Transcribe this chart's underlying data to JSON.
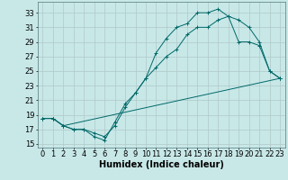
{
  "title": "",
  "xlabel": "Humidex (Indice chaleur)",
  "ylabel": "",
  "background_color": "#c8e8e8",
  "grid_color": "#b0c8c8",
  "line_color": "#006868",
  "xlim": [
    -0.5,
    23.5
  ],
  "ylim": [
    14.5,
    34.5
  ],
  "xticks": [
    0,
    1,
    2,
    3,
    4,
    5,
    6,
    7,
    8,
    9,
    10,
    11,
    12,
    13,
    14,
    15,
    16,
    17,
    18,
    19,
    20,
    21,
    22,
    23
  ],
  "yticks": [
    15,
    17,
    19,
    21,
    23,
    25,
    27,
    29,
    31,
    33
  ],
  "line1_x": [
    0,
    1,
    2,
    3,
    4,
    5,
    6,
    7,
    8,
    9,
    10,
    11,
    12,
    13,
    14,
    15,
    16,
    17,
    18,
    19,
    20,
    21,
    22,
    23
  ],
  "line1_y": [
    18.5,
    18.5,
    17.5,
    17,
    17,
    16,
    15.5,
    18,
    20.5,
    22,
    24,
    27.5,
    29.5,
    31,
    31.5,
    33,
    33,
    33.5,
    32.5,
    32,
    31,
    29,
    25,
    24
  ],
  "line2_x": [
    0,
    1,
    2,
    3,
    4,
    5,
    6,
    7,
    8,
    9,
    10,
    11,
    12,
    13,
    14,
    15,
    16,
    17,
    18,
    19,
    20,
    21,
    22,
    23
  ],
  "line2_y": [
    18.5,
    18.5,
    17.5,
    17,
    17,
    16.5,
    16,
    17.5,
    20,
    22,
    24,
    25.5,
    27,
    28,
    30,
    31,
    31,
    32,
    32.5,
    29,
    29,
    28.5,
    25,
    24
  ],
  "line3_x": [
    0,
    1,
    2,
    23
  ],
  "line3_y": [
    18.5,
    18.5,
    17.5,
    24
  ],
  "xlabel_fontsize": 7,
  "tick_fontsize": 6
}
